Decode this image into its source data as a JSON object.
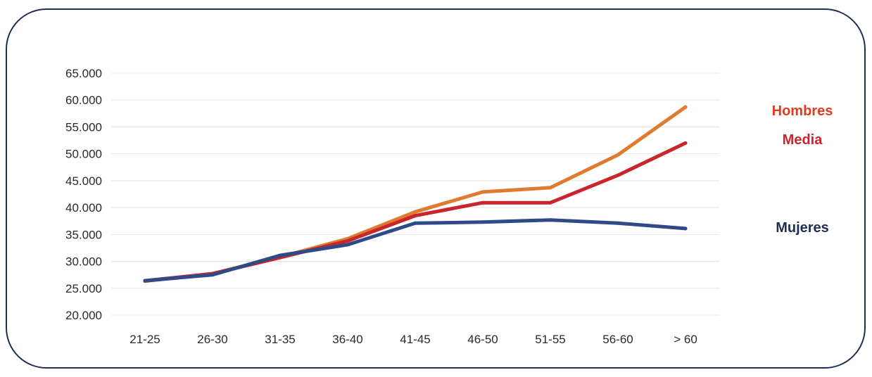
{
  "chart_data": {
    "type": "line",
    "title": "",
    "xlabel": "",
    "ylabel": "",
    "categories": [
      "21-25",
      "26-30",
      "31-35",
      "36-40",
      "41-45",
      "46-50",
      "51-55",
      "56-60",
      "> 60"
    ],
    "y_ticks": [
      "65.000",
      "60.000",
      "55.000",
      "50.000",
      "45.000",
      "40.000",
      "35.000",
      "30.000",
      "25.000",
      "20.000"
    ],
    "ylim": [
      20000,
      65000
    ],
    "grid": true,
    "legend_position": "right",
    "series": [
      {
        "name": "Hombres",
        "color": "#e07a2e",
        "label_color": "#e03c1f",
        "values": [
          26300,
          27700,
          30800,
          34200,
          39200,
          42900,
          43700,
          49800,
          58700
        ]
      },
      {
        "name": "Media",
        "color": "#c8252c",
        "label_color": "#c8252c",
        "values": [
          26400,
          27700,
          30700,
          33800,
          38500,
          40900,
          40900,
          46000,
          52000
        ]
      },
      {
        "name": "Mujeres",
        "color": "#2f4a86",
        "label_color": "#1f2f52",
        "values": [
          26400,
          27500,
          31100,
          33100,
          37100,
          37300,
          37700,
          37100,
          36100
        ]
      }
    ]
  }
}
